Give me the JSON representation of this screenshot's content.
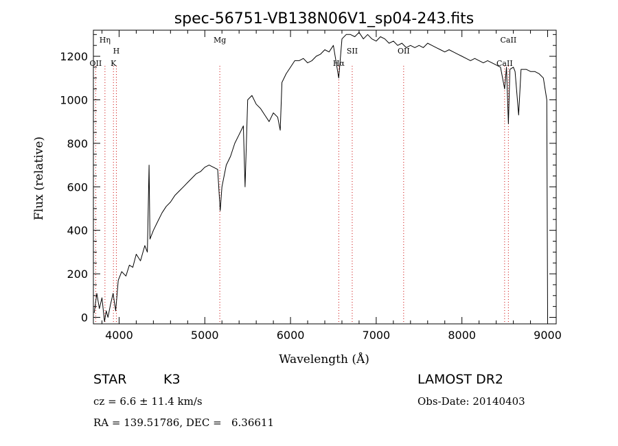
{
  "chart_data": {
    "type": "line",
    "title": "spec-56751-VB138N06V1_sp04-243.fits",
    "xlabel": "Wavelength (Å)",
    "ylabel": "Flux (relative)",
    "xlim": [
      3700,
      9100
    ],
    "ylim": [
      -30,
      1320
    ],
    "x_ticks": [
      4000,
      5000,
      6000,
      7000,
      8000,
      9000
    ],
    "y_ticks": [
      0,
      200,
      400,
      600,
      800,
      1000,
      1200
    ],
    "grid": false,
    "line_color": "#000000",
    "marker_color": "#cc0000",
    "series": [
      {
        "points": [
          [
            3710,
            20
          ],
          [
            3740,
            110
          ],
          [
            3770,
            40
          ],
          [
            3800,
            90
          ],
          [
            3830,
            -20
          ],
          [
            3850,
            30
          ],
          [
            3870,
            0
          ],
          [
            3900,
            60
          ],
          [
            3930,
            110
          ],
          [
            3960,
            30
          ],
          [
            3990,
            170
          ],
          [
            4030,
            210
          ],
          [
            4080,
            190
          ],
          [
            4120,
            240
          ],
          [
            4160,
            230
          ],
          [
            4200,
            290
          ],
          [
            4250,
            260
          ],
          [
            4300,
            330
          ],
          [
            4330,
            300
          ],
          [
            4350,
            700
          ],
          [
            4360,
            360
          ],
          [
            4400,
            400
          ],
          [
            4450,
            440
          ],
          [
            4500,
            480
          ],
          [
            4550,
            510
          ],
          [
            4600,
            530
          ],
          [
            4650,
            560
          ],
          [
            4700,
            580
          ],
          [
            4750,
            600
          ],
          [
            4800,
            620
          ],
          [
            4850,
            640
          ],
          [
            4900,
            660
          ],
          [
            4950,
            670
          ],
          [
            5000,
            690
          ],
          [
            5050,
            700
          ],
          [
            5100,
            690
          ],
          [
            5150,
            680
          ],
          [
            5180,
            490
          ],
          [
            5200,
            600
          ],
          [
            5250,
            700
          ],
          [
            5300,
            740
          ],
          [
            5350,
            800
          ],
          [
            5400,
            840
          ],
          [
            5450,
            880
          ],
          [
            5470,
            600
          ],
          [
            5500,
            1000
          ],
          [
            5550,
            1020
          ],
          [
            5600,
            980
          ],
          [
            5650,
            960
          ],
          [
            5700,
            930
          ],
          [
            5750,
            900
          ],
          [
            5800,
            940
          ],
          [
            5850,
            920
          ],
          [
            5880,
            860
          ],
          [
            5900,
            1080
          ],
          [
            5950,
            1120
          ],
          [
            6000,
            1150
          ],
          [
            6050,
            1180
          ],
          [
            6100,
            1180
          ],
          [
            6150,
            1190
          ],
          [
            6200,
            1170
          ],
          [
            6250,
            1180
          ],
          [
            6300,
            1200
          ],
          [
            6350,
            1210
          ],
          [
            6400,
            1230
          ],
          [
            6450,
            1220
          ],
          [
            6500,
            1250
          ],
          [
            6563,
            1100
          ],
          [
            6600,
            1280
          ],
          [
            6650,
            1300
          ],
          [
            6700,
            1300
          ],
          [
            6750,
            1290
          ],
          [
            6800,
            1310
          ],
          [
            6850,
            1280
          ],
          [
            6900,
            1300
          ],
          [
            6950,
            1280
          ],
          [
            7000,
            1270
          ],
          [
            7050,
            1290
          ],
          [
            7100,
            1280
          ],
          [
            7150,
            1260
          ],
          [
            7200,
            1270
          ],
          [
            7250,
            1250
          ],
          [
            7300,
            1260
          ],
          [
            7350,
            1240
          ],
          [
            7400,
            1250
          ],
          [
            7450,
            1240
          ],
          [
            7500,
            1250
          ],
          [
            7550,
            1240
          ],
          [
            7600,
            1260
          ],
          [
            7650,
            1250
          ],
          [
            7700,
            1240
          ],
          [
            7750,
            1230
          ],
          [
            7800,
            1220
          ],
          [
            7850,
            1230
          ],
          [
            7900,
            1220
          ],
          [
            7950,
            1210
          ],
          [
            8000,
            1200
          ],
          [
            8050,
            1190
          ],
          [
            8100,
            1180
          ],
          [
            8150,
            1190
          ],
          [
            8200,
            1180
          ],
          [
            8250,
            1170
          ],
          [
            8300,
            1180
          ],
          [
            8350,
            1170
          ],
          [
            8400,
            1160
          ],
          [
            8450,
            1150
          ],
          [
            8498,
            1050
          ],
          [
            8520,
            1150
          ],
          [
            8542,
            890
          ],
          [
            8560,
            1140
          ],
          [
            8600,
            1150
          ],
          [
            8620,
            1130
          ],
          [
            8662,
            930
          ],
          [
            8690,
            1140
          ],
          [
            8750,
            1140
          ],
          [
            8800,
            1130
          ],
          [
            8850,
            1130
          ],
          [
            8900,
            1120
          ],
          [
            8950,
            1100
          ],
          [
            8990,
            1000
          ],
          [
            9000,
            0
          ]
        ]
      }
    ],
    "line_markers": [
      {
        "label": "Hη",
        "x": 3835,
        "level": "top"
      },
      {
        "label": "OII",
        "x": 3727,
        "level": "lower"
      },
      {
        "label": "H",
        "x": 3968,
        "level": "upper"
      },
      {
        "label": "K",
        "x": 3934,
        "level": "lower"
      },
      {
        "label": "Mg",
        "x": 5175,
        "level": "top"
      },
      {
        "label": "Hα",
        "x": 6563,
        "level": "lower"
      },
      {
        "label": "OII",
        "x": 7320,
        "level": "mid"
      },
      {
        "label": "SII",
        "x": 6720,
        "level": "mid"
      },
      {
        "label": "CaII",
        "x": 8542,
        "level": "top"
      },
      {
        "label": "CaII",
        "x": 8498,
        "level": "lower"
      }
    ]
  },
  "footer": {
    "object_type": "STAR",
    "subclass": "K3",
    "cz": "cz = 6.6 ± 11.4 km/s",
    "coords": "RA = 139.51786, DEC =   6.36611",
    "survey": "LAMOST DR2",
    "obs_date": "Obs-Date: 20140403"
  }
}
